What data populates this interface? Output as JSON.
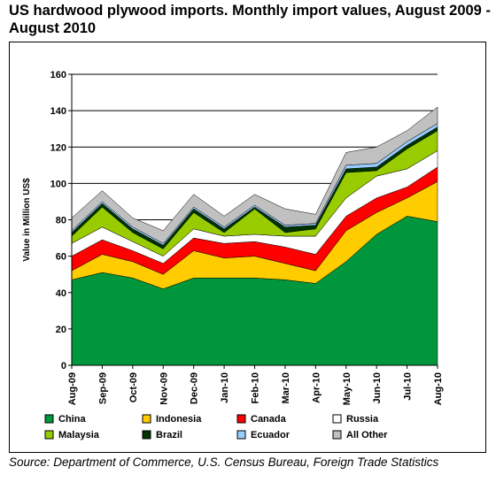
{
  "title": "US hardwood plywood imports. Monthly import values, August 2009 - August 2010",
  "source": "Source: Department of Commerce, U.S. Census Bureau, Foreign Trade Statistics",
  "chart_data": {
    "type": "area",
    "stacked": true,
    "ylabel": "Value in Million US$",
    "xlabel": "",
    "ylim": [
      0,
      160
    ],
    "yticks": [
      0,
      20,
      40,
      60,
      80,
      100,
      120,
      140,
      160
    ],
    "grid": true,
    "legend_position": "bottom",
    "categories": [
      "Aug-09",
      "Sep-09",
      "Oct-09",
      "Nov-09",
      "Dec-09",
      "Jan-10",
      "Feb-10",
      "Mar-10",
      "Apr-10",
      "May-10",
      "Jun-10",
      "Jul-10",
      "Aug-10"
    ],
    "series": [
      {
        "name": "China",
        "color": "#00963C",
        "values": [
          47,
          51,
          48,
          42,
          48,
          48,
          48,
          47,
          45,
          57,
          72,
          82,
          79
        ]
      },
      {
        "name": "Indonesia",
        "color": "#FFCC00",
        "values": [
          5,
          10,
          9,
          8,
          15,
          11,
          12,
          9,
          7,
          17,
          12,
          10,
          22
        ]
      },
      {
        "name": "Canada",
        "color": "#FF0000",
        "values": [
          8,
          8,
          6,
          6,
          7,
          8,
          8,
          9,
          9,
          8,
          8,
          6,
          8
        ]
      },
      {
        "name": "Russia",
        "color": "#FFFFFF",
        "values": [
          7,
          7,
          5,
          4,
          5,
          4,
          4,
          6,
          10,
          10,
          12,
          10,
          9
        ]
      },
      {
        "name": "Malaysia",
        "color": "#99CC00",
        "values": [
          4,
          11,
          5,
          4,
          9,
          2,
          14,
          2,
          4,
          14,
          3,
          11,
          11
        ]
      },
      {
        "name": "Brazil",
        "color": "#003300",
        "values": [
          2,
          2,
          2,
          2,
          2,
          2,
          1,
          3,
          2,
          2,
          2,
          2,
          2
        ]
      },
      {
        "name": "Ecuador",
        "color": "#99CCFF",
        "values": [
          1,
          1,
          1,
          1,
          1,
          1,
          1,
          1,
          1,
          2,
          2,
          2,
          2
        ]
      },
      {
        "name": "All Other",
        "color": "#C0C0C0",
        "values": [
          7,
          6,
          5,
          7,
          7,
          6,
          6,
          9,
          5,
          7,
          9,
          6,
          9
        ]
      }
    ]
  }
}
